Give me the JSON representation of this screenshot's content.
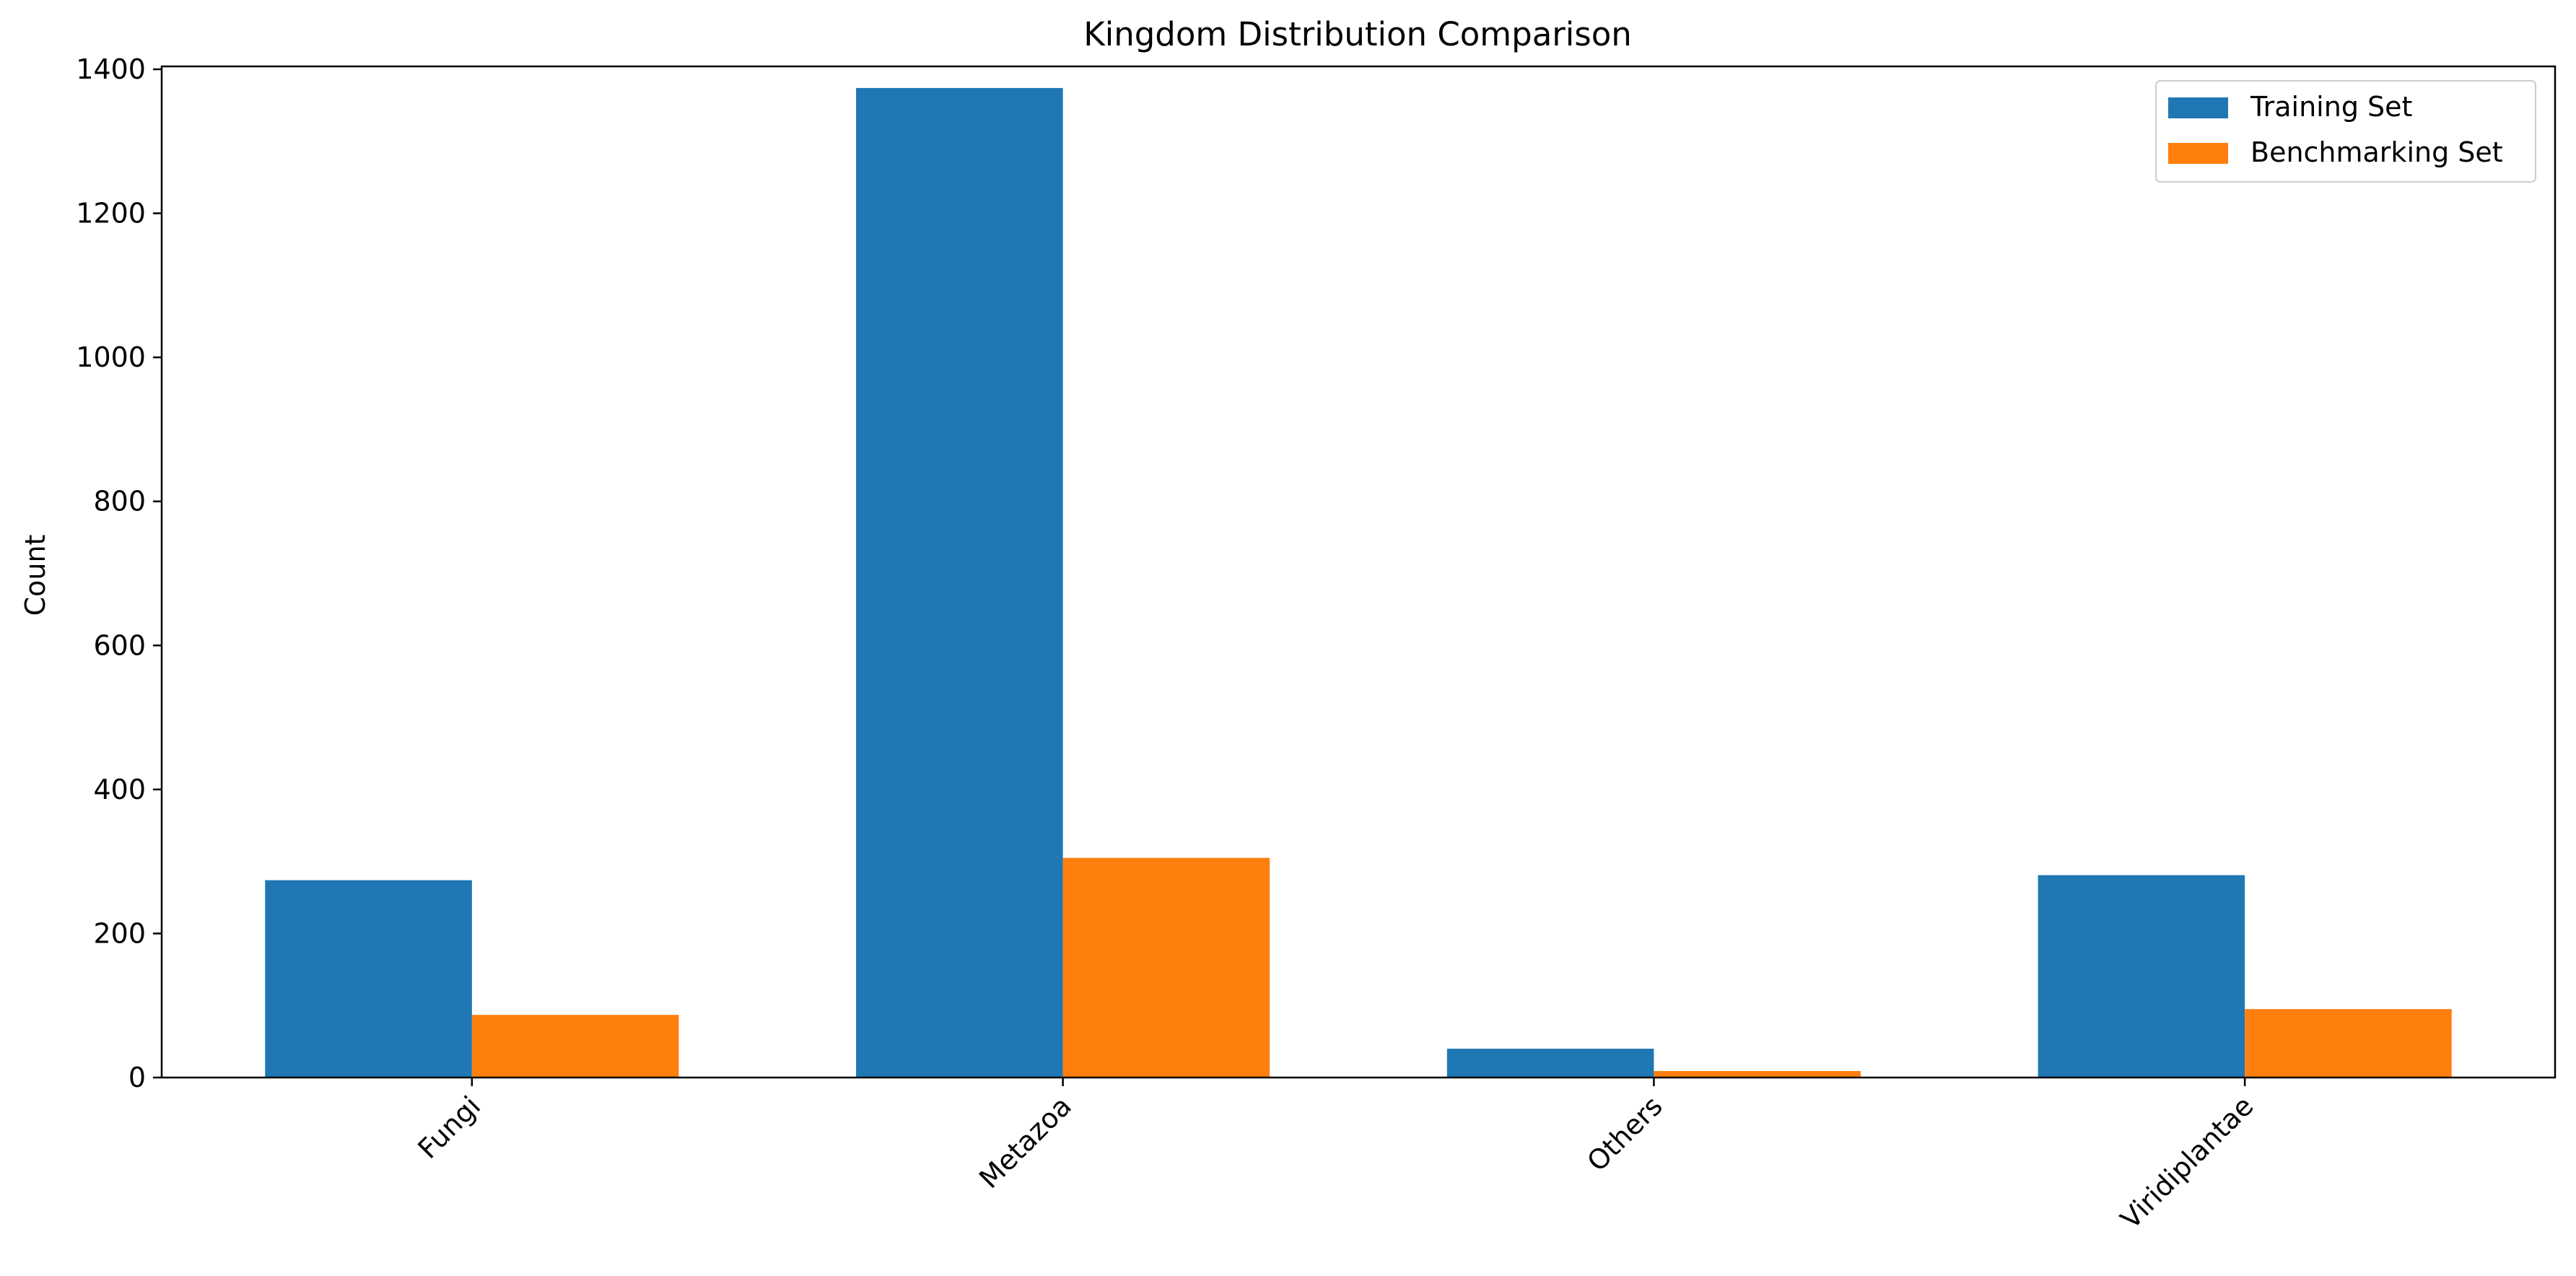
{
  "chart_data": {
    "type": "bar",
    "title": "Kingdom Distribution Comparison",
    "xlabel": "",
    "ylabel": "Count",
    "categories": [
      "Fungi",
      "Metazoa",
      "Others",
      "Viridiplantae"
    ],
    "series": [
      {
        "name": "Training Set",
        "color": "#1f77b4",
        "values": [
          274,
          1374,
          40,
          281
        ]
      },
      {
        "name": "Benchmarking Set",
        "color": "#ff7f0e",
        "values": [
          87,
          305,
          9,
          95
        ]
      }
    ],
    "ylim": [
      0,
      1404
    ],
    "yticks": [
      0,
      200,
      400,
      600,
      800,
      1000,
      1200,
      1400
    ],
    "grid": false,
    "legend_position": "top-right",
    "xtick_rotation": 45
  }
}
